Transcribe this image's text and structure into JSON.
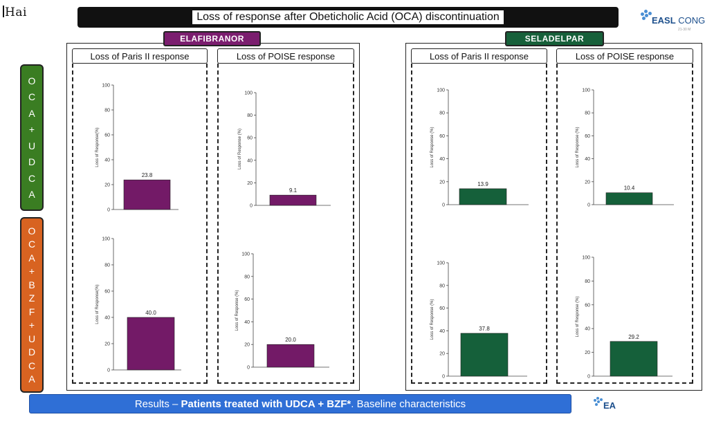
{
  "brand": {
    "left_text": "Hai"
  },
  "title": "Loss of response after Obeticholic Acid (OCA) discontinuation",
  "logos": {
    "easl_bold": "EASL",
    "easl_rest": "CONG",
    "easl_sub": "21-30 M",
    "footer_logo": "EA"
  },
  "drugs": {
    "elafibranor": "ELAFIBRANOR",
    "seladelpar": "SELADELPAR"
  },
  "rows": {
    "udca": [
      "O",
      "C",
      "A",
      "+",
      "U",
      "D",
      "C",
      "A"
    ],
    "bzf": [
      "O",
      "C",
      "A",
      "+",
      "B",
      "Z",
      "F",
      "+",
      "U",
      "D",
      "C",
      "A"
    ]
  },
  "panels": {
    "paris": "Loss of Paris II response",
    "poise": "Loss of POISE response"
  },
  "results": {
    "prefix": "Results – ",
    "bold": "Patients treated with UDCA + BZF*",
    "suffix": ". Baseline characteristics"
  },
  "colors": {
    "elafibranor": "#731a67",
    "seladelpar": "#15603a",
    "udca_row": "#3a7d22",
    "bzf_row": "#d86321",
    "results": "#2f6fd6"
  },
  "chart_data": [
    {
      "type": "bar",
      "drug": "ELAFIBRANOR",
      "row": "OCA+UDCA",
      "panel": "Loss of Paris II response",
      "ylabel": "Loss of Response(%)",
      "ylim": [
        0,
        100
      ],
      "yticks": [
        0,
        20,
        40,
        60,
        80,
        100
      ],
      "values": [
        23.8
      ],
      "value_labels": [
        "23.8"
      ]
    },
    {
      "type": "bar",
      "drug": "ELAFIBRANOR",
      "row": "OCA+UDCA",
      "panel": "Loss of POISE response",
      "ylabel": "Loss of Response (%)",
      "ylim": [
        0,
        100
      ],
      "yticks": [
        0,
        20,
        40,
        60,
        80,
        100
      ],
      "values": [
        9.1
      ],
      "value_labels": [
        "9.1"
      ]
    },
    {
      "type": "bar",
      "drug": "SELADELPAR",
      "row": "OCA+UDCA",
      "panel": "Loss of Paris II response",
      "ylabel": "Loss of Response (%)",
      "ylim": [
        0,
        100
      ],
      "yticks": [
        0,
        20,
        40,
        60,
        80,
        100
      ],
      "values": [
        13.9
      ],
      "value_labels": [
        "13.9"
      ]
    },
    {
      "type": "bar",
      "drug": "SELADELPAR",
      "row": "OCA+UDCA",
      "panel": "Loss of POISE response",
      "ylabel": "Loss of Response (%)",
      "ylim": [
        0,
        100
      ],
      "yticks": [
        0,
        20,
        40,
        60,
        80,
        100
      ],
      "values": [
        10.4
      ],
      "value_labels": [
        "10.4"
      ]
    },
    {
      "type": "bar",
      "drug": "ELAFIBRANOR",
      "row": "OCA+BZF+UDCA",
      "panel": "Loss of Paris II response",
      "ylabel": "Loss of Response(%)",
      "ylim": [
        0,
        100
      ],
      "yticks": [
        0,
        20,
        40,
        60,
        80,
        100
      ],
      "values": [
        40.0
      ],
      "value_labels": [
        "40.0"
      ]
    },
    {
      "type": "bar",
      "drug": "ELAFIBRANOR",
      "row": "OCA+BZF+UDCA",
      "panel": "Loss of POISE response",
      "ylabel": "Loss of Response (%)",
      "ylim": [
        0,
        100
      ],
      "yticks": [
        0,
        20,
        40,
        60,
        80,
        100
      ],
      "values": [
        20.0
      ],
      "value_labels": [
        "20.0"
      ]
    },
    {
      "type": "bar",
      "drug": "SELADELPAR",
      "row": "OCA+BZF+UDCA",
      "panel": "Loss of Paris II response",
      "ylabel": "Loss of Response (%)",
      "ylim": [
        0,
        100
      ],
      "yticks": [
        0,
        20,
        40,
        60,
        80,
        100
      ],
      "values": [
        37.8
      ],
      "value_labels": [
        "37.8"
      ]
    },
    {
      "type": "bar",
      "drug": "SELADELPAR",
      "row": "OCA+BZF+UDCA",
      "panel": "Loss of POISE response",
      "ylabel": "Loss of Response (%)",
      "ylim": [
        0,
        100
      ],
      "yticks": [
        0,
        20,
        40,
        60,
        80,
        100
      ],
      "values": [
        29.2
      ],
      "value_labels": [
        "29.2"
      ]
    }
  ]
}
